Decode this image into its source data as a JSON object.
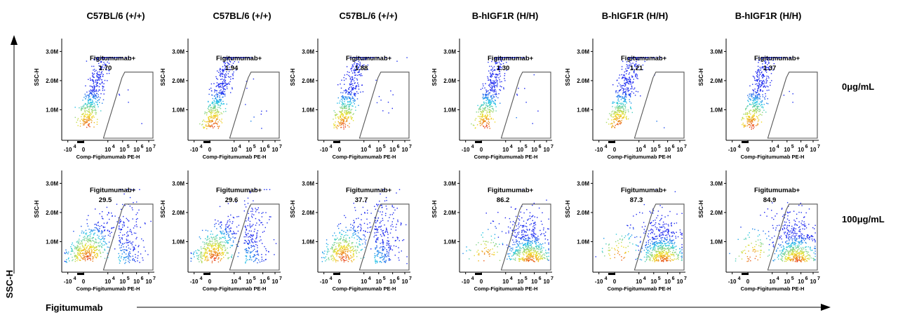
{
  "figure": {
    "y_axis_title": "SSC-H",
    "x_axis_title": "Figitumumab",
    "row_labels": [
      "0μg/mL",
      "100μg/mL"
    ],
    "column_titles": [
      "C57BL/6 (+/+)",
      "C57BL/6 (+/+)",
      "C57BL/6 (+/+)",
      "B-hIGF1R (H/H)",
      "B-hIGF1R (H/H)",
      "B-hIGF1R (H/H)"
    ]
  },
  "chart_data": {
    "type": "scatter",
    "subtype": "flow-cytometry-density-plot",
    "panel_xlabel": "Comp-Figitumumab PE-H",
    "panel_ylabel": "SSC-H",
    "gate_name": "Figitumumab+",
    "x_ticks": [
      {
        "base": "-10",
        "exp": "4"
      },
      {
        "base": "0",
        "exp": ""
      },
      {
        "base": "10",
        "exp": "4"
      },
      {
        "base": "10",
        "exp": "5"
      },
      {
        "base": "10",
        "exp": "6"
      },
      {
        "base": "10",
        "exp": "7"
      }
    ],
    "y_ticks": [
      "1.0M",
      "2.0M",
      "3.0M"
    ],
    "rows": [
      {
        "treatment": "0μg/mL",
        "gate_percent": [
          "1.70",
          "1.94",
          "1.88",
          "1.30",
          "1.21",
          "1.37"
        ]
      },
      {
        "treatment": "100μg/mL",
        "gate_percent": [
          "29.5",
          "29.6",
          "37.7",
          "86.2",
          "87.3",
          "84.9"
        ]
      }
    ],
    "colors": {
      "density_low": "#1c1cf0",
      "density_mid": "#22c8e8",
      "density_high": "#f0e020",
      "density_peak": "#e83a1a",
      "gate": "#555555"
    }
  }
}
